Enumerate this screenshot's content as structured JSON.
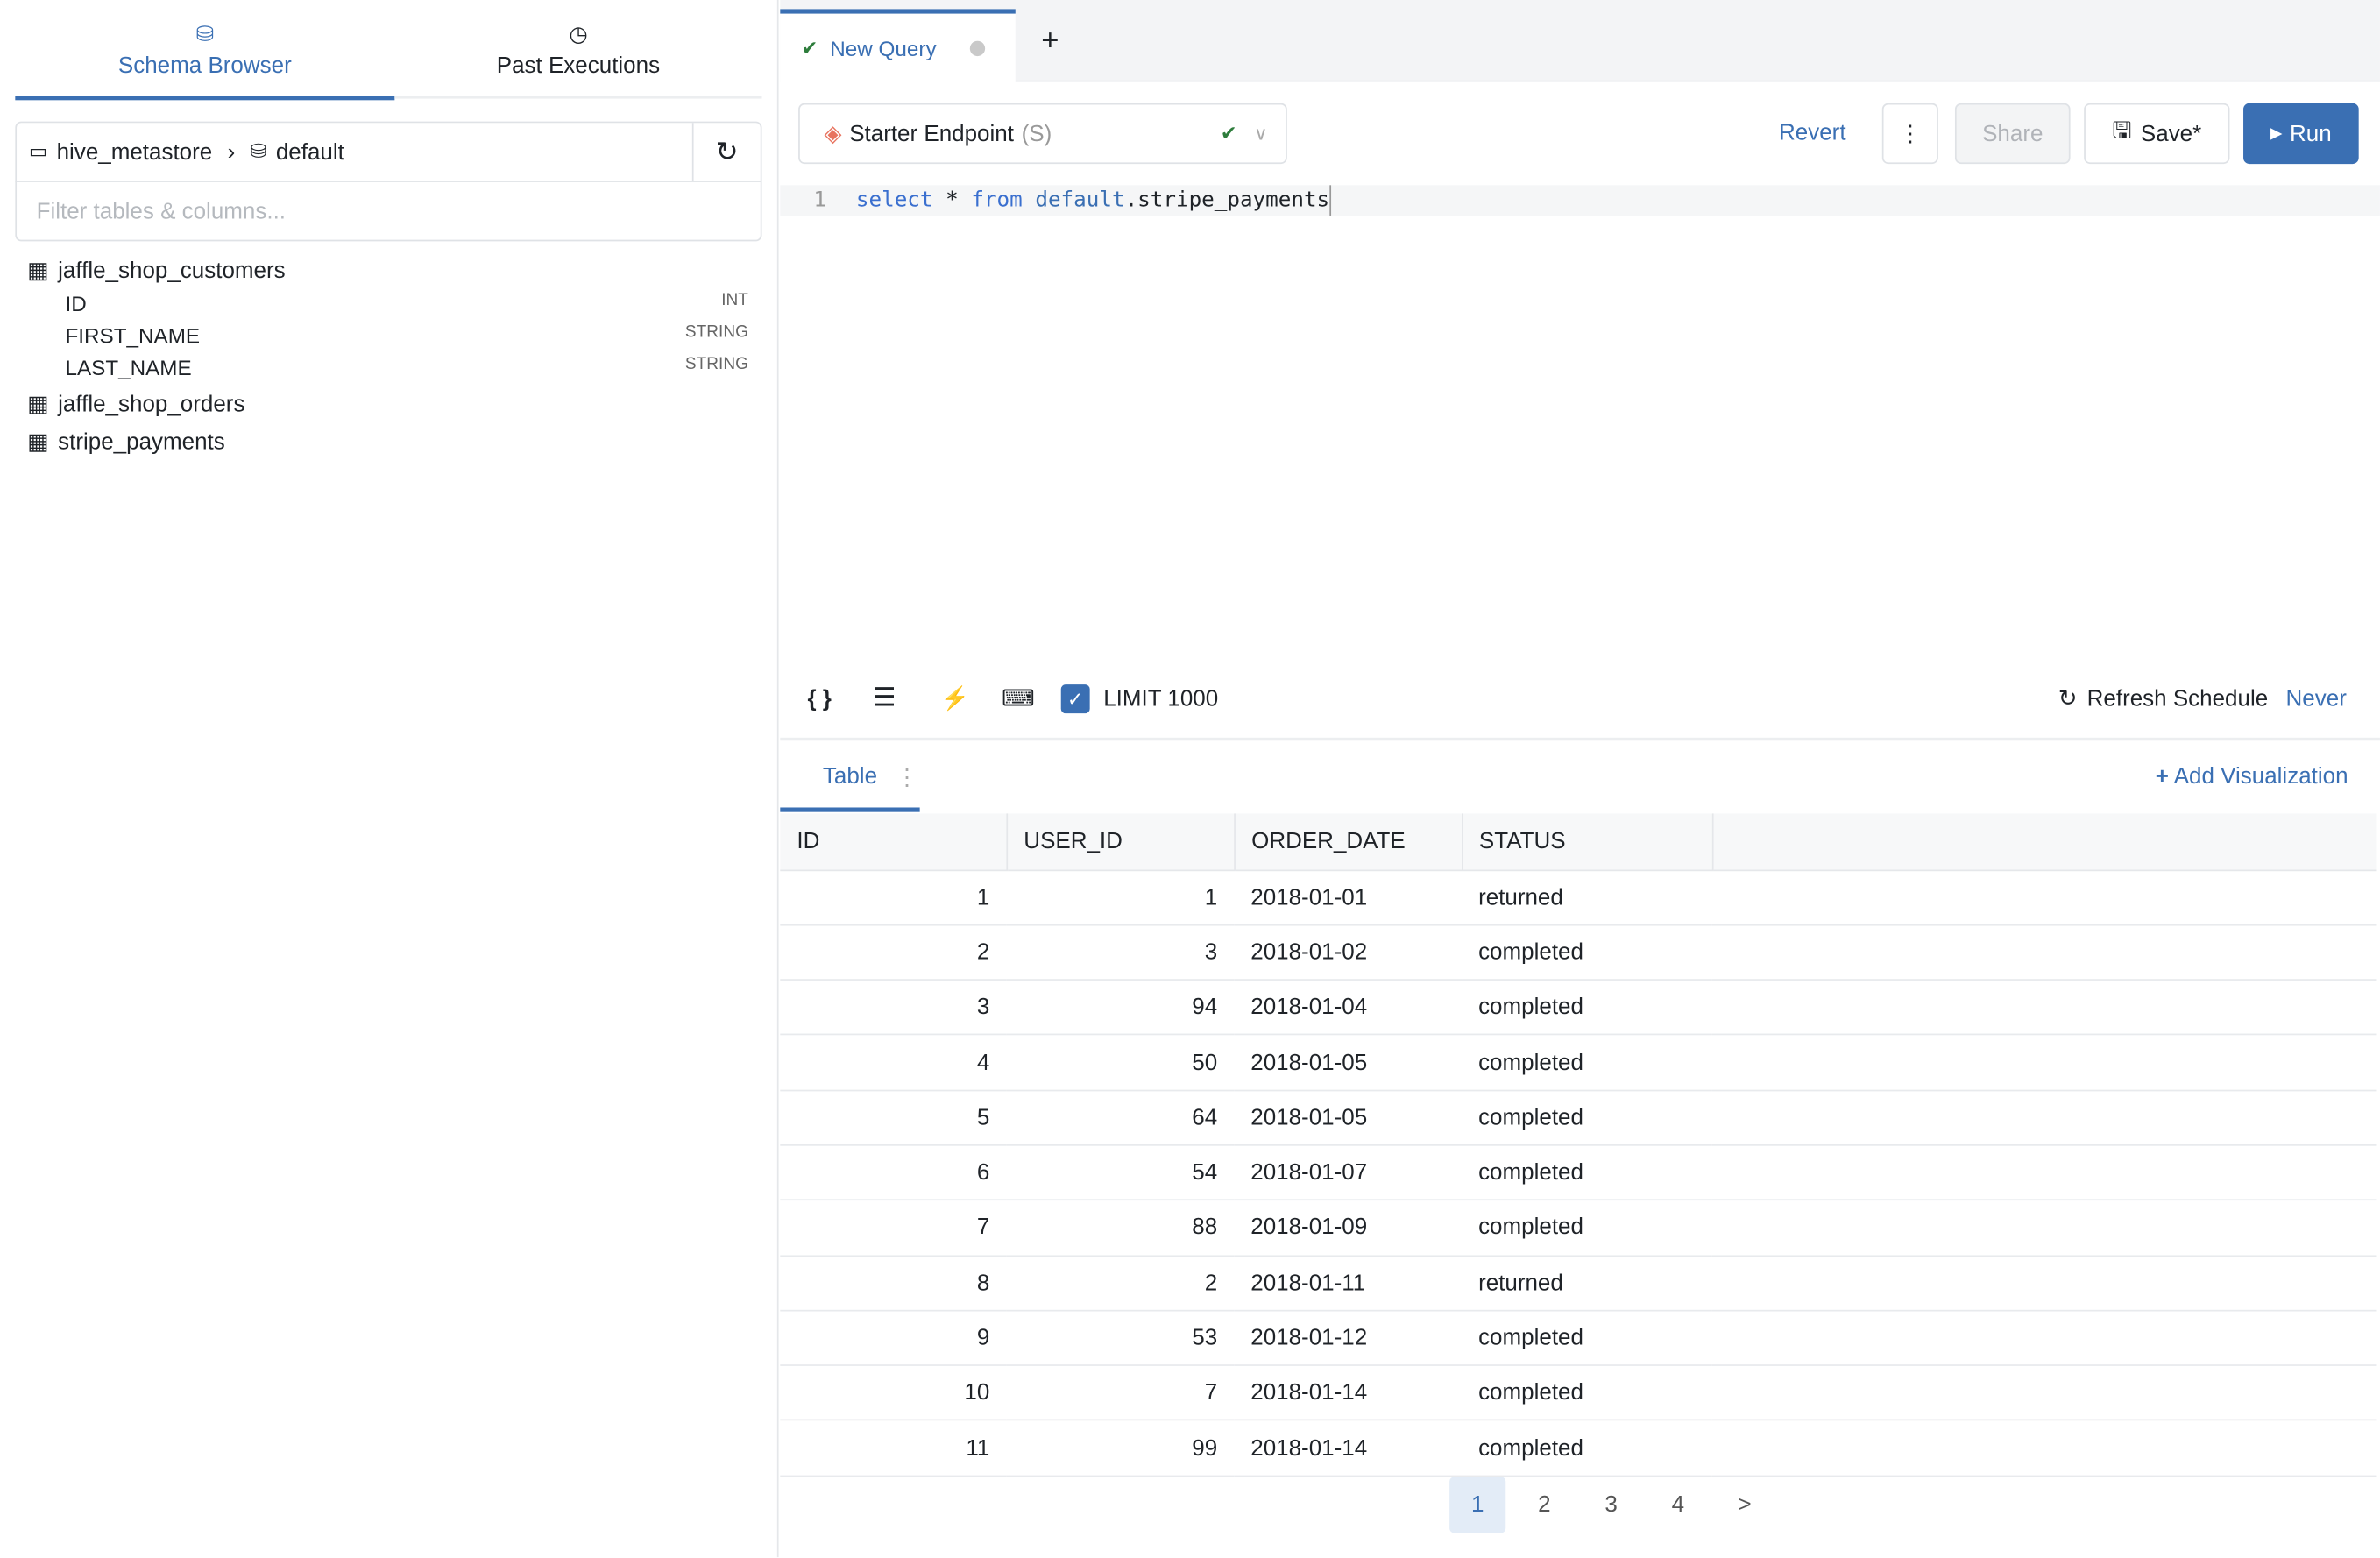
{
  "sidebar": {
    "tabs": [
      {
        "label": "Schema Browser",
        "icon": "database-icon",
        "active": true
      },
      {
        "label": "Past Executions",
        "icon": "history-icon",
        "active": false
      }
    ],
    "breadcrumb": {
      "catalog": "hive_metastore",
      "schema": "default"
    },
    "filter_placeholder": "Filter tables & columns...",
    "tables": [
      {
        "name": "jaffle_shop_customers",
        "columns": [
          {
            "name": "ID",
            "type": "INT"
          },
          {
            "name": "FIRST_NAME",
            "type": "STRING"
          },
          {
            "name": "LAST_NAME",
            "type": "STRING"
          }
        ]
      },
      {
        "name": "jaffle_shop_orders"
      },
      {
        "name": "stripe_payments"
      }
    ]
  },
  "query_tab": {
    "label": "New Query",
    "add": "+"
  },
  "toolbar": {
    "endpoint": "Starter Endpoint",
    "endpoint_size": "(S)",
    "revert": "Revert",
    "more": "⋮",
    "share": "Share",
    "save": "Save*",
    "run": "Run"
  },
  "editor": {
    "line": "1",
    "kw1": "select",
    "star": " * ",
    "kw2": "from",
    "schema": "default",
    "rest": ".stripe_payments"
  },
  "options": {
    "limit_label": "LIMIT 1000",
    "limit_checked": true,
    "refresh_label": "Refresh Schedule",
    "refresh_value": "Never"
  },
  "results": {
    "tab": "Table",
    "add_viz": "Add Visualization",
    "columns": [
      "ID",
      "USER_ID",
      "ORDER_DATE",
      "STATUS"
    ],
    "rows": [
      [
        "1",
        "1",
        "2018-01-01",
        "returned"
      ],
      [
        "2",
        "3",
        "2018-01-02",
        "completed"
      ],
      [
        "3",
        "94",
        "2018-01-04",
        "completed"
      ],
      [
        "4",
        "50",
        "2018-01-05",
        "completed"
      ],
      [
        "5",
        "64",
        "2018-01-05",
        "completed"
      ],
      [
        "6",
        "54",
        "2018-01-07",
        "completed"
      ],
      [
        "7",
        "88",
        "2018-01-09",
        "completed"
      ],
      [
        "8",
        "2",
        "2018-01-11",
        "returned"
      ],
      [
        "9",
        "53",
        "2018-01-12",
        "completed"
      ],
      [
        "10",
        "7",
        "2018-01-14",
        "completed"
      ],
      [
        "11",
        "99",
        "2018-01-14",
        "completed"
      ]
    ]
  },
  "pagination": {
    "pages": [
      "1",
      "2",
      "3",
      "4"
    ],
    "current": "1",
    "next": ">"
  },
  "colors": {
    "accent": "#3a6fb3",
    "success": "#2e7d3c",
    "endpoint": "#e8735f"
  }
}
